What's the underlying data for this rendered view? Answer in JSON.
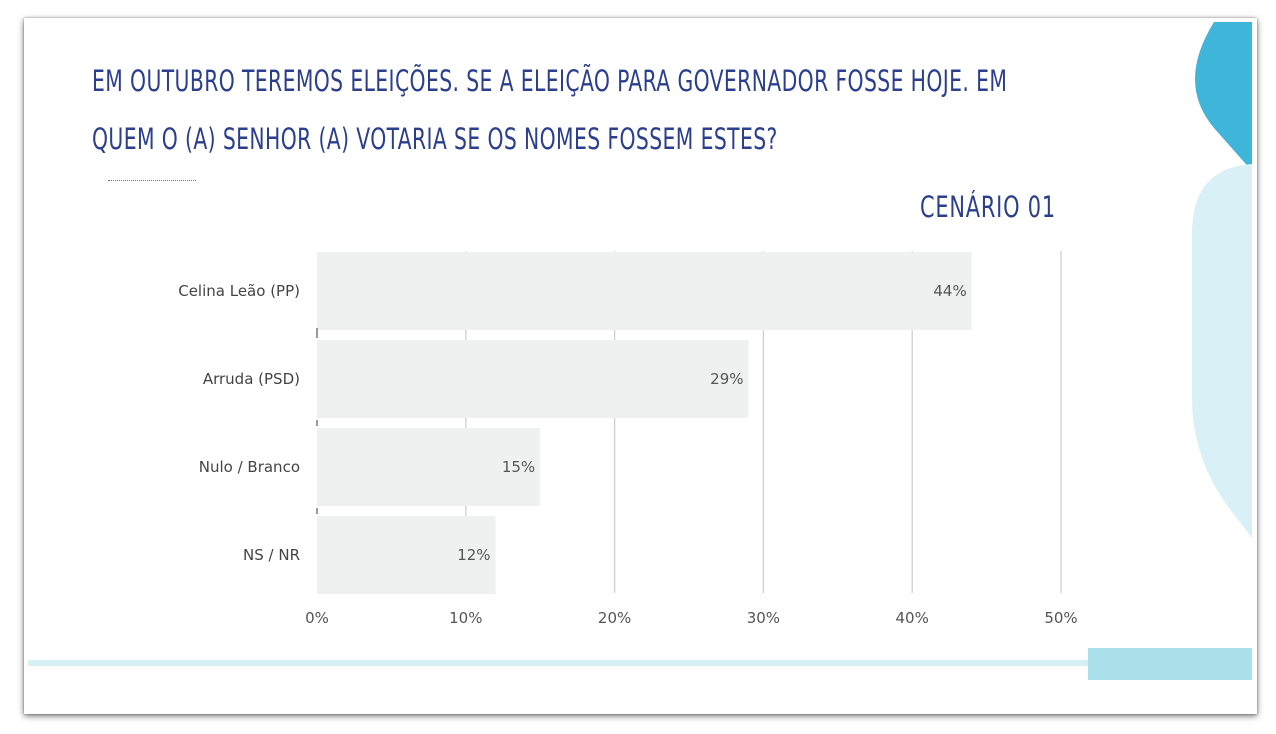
{
  "slide": {
    "title_line1": "EM OUTUBRO TEREMOS ELEIÇÕES. SE A ELEIÇÃO PARA GOVERNADOR  FOSSE HOJE. EM",
    "title_line2": "QUEM O (A) SENHOR (A) VOTARIA SE OS NOMES FOSSEM ESTES?",
    "scenario": "CENÁRIO 01"
  },
  "colors": {
    "title": "#2b3f8e",
    "bar": "#eff1f1",
    "grid": "#cfcfcf",
    "label": "#444444",
    "accent_blue": "#3fb5d9",
    "accent_light": "#d9f1f6"
  },
  "chart_data": {
    "type": "bar",
    "orientation": "horizontal",
    "categories": [
      "Celina Leão (PP)",
      "Arruda (PSD)",
      "Nulo / Branco",
      "NS / NR"
    ],
    "values": [
      44,
      29,
      15,
      12
    ],
    "value_labels": [
      "44%",
      "29%",
      "15%",
      "12%"
    ],
    "xlim": [
      0,
      50
    ],
    "x_ticks": [
      0,
      10,
      20,
      30,
      40,
      50
    ],
    "x_tick_labels": [
      "0%",
      "10%",
      "20%",
      "30%",
      "40%",
      "50%"
    ],
    "grid": true,
    "title": "",
    "xlabel": "",
    "ylabel": ""
  }
}
